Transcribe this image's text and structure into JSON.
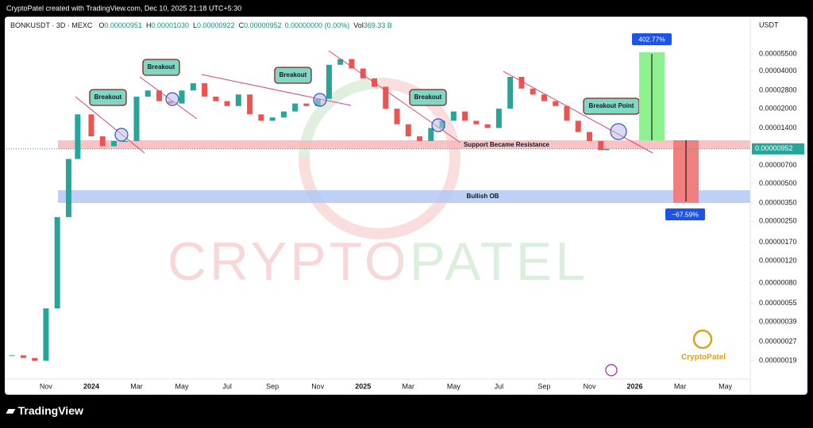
{
  "header": {
    "credit": "CryptoPatel created with TradingView.com, Dec 10, 2025 21:18 UTC+5:30",
    "symbol": "BONKUSDT · 3D · MEXC",
    "ohlc": [
      {
        "key": "O",
        "value": "0.00000951"
      },
      {
        "key": "H",
        "value": "0.00001030"
      },
      {
        "key": "L",
        "value": "0.00000922"
      },
      {
        "key": "C",
        "value": "0.00000952"
      }
    ],
    "change": "0.00000000 (0.00%)",
    "volume_key": "Vol",
    "volume": "369.33 B"
  },
  "chart_data": {
    "type": "candlestick",
    "y_unit": "USDT",
    "log_scale": true,
    "up_color": "#26a69a",
    "down_color": "#ef5350",
    "x": [
      -1.5,
      -1,
      -0.5,
      0,
      0.5,
      1,
      1.4,
      2,
      2.5,
      3,
      3.5,
      4,
      4.5,
      5,
      5.5,
      6,
      6.5,
      7,
      7.5,
      8,
      8.5,
      9,
      9.5,
      10,
      10.5,
      11,
      11.5,
      12,
      12.5,
      13,
      13.5,
      14,
      14.5,
      15,
      15.5,
      16,
      16.5,
      17,
      17.5,
      18,
      18.5,
      19,
      19.5,
      20,
      20.5,
      21,
      21.5,
      22,
      22.5,
      23,
      23.5,
      24,
      24.5,
      24.75
    ],
    "values": [
      2.1e-07,
      2e-07,
      1.9e-07,
      5e-07,
      2.7e-06,
      7.9e-06,
      1.8e-05,
      1.2e-05,
      1e-05,
      1.1e-05,
      1.1e-05,
      2.5e-05,
      2.8e-05,
      2.3e-05,
      2.2e-05,
      2.8e-05,
      3.2e-05,
      2.5e-05,
      2.3e-05,
      2.1e-05,
      2.6e-05,
      1.8e-05,
      1.6e-05,
      1.7e-05,
      1.9e-05,
      2.2e-05,
      2.1e-05,
      2.4e-05,
      4.5e-05,
      5e-05,
      4.2e-05,
      3.5e-05,
      3e-05,
      2e-05,
      1.5e-05,
      1.2e-05,
      1.1e-05,
      1.4e-05,
      1.6e-05,
      1.9e-05,
      1.6e-05,
      1.5e-05,
      1.4e-05,
      2e-05,
      3.6e-05,
      2.9e-05,
      2.6e-05,
      2.3e-05,
      2.1e-05,
      1.6e-05,
      1.3e-05,
      1.1e-05,
      9.3e-06,
      9.52e-06
    ],
    "xlim": [
      -1.75,
      31.1
    ],
    "ylim": [
      1.36e-07,
      9.6e-05
    ],
    "xticks": [
      {
        "value": 0,
        "label": "Nov"
      },
      {
        "value": 2,
        "label": "2024"
      },
      {
        "value": 4,
        "label": "Mar"
      },
      {
        "value": 6,
        "label": "May"
      },
      {
        "value": 8,
        "label": "Jul"
      },
      {
        "value": 10,
        "label": "Sep"
      },
      {
        "value": 12,
        "label": "Nov"
      },
      {
        "value": 14,
        "label": "2025"
      },
      {
        "value": 16,
        "label": "Mar"
      },
      {
        "value": 18,
        "label": "May"
      },
      {
        "value": 20,
        "label": "Jul"
      },
      {
        "value": 22,
        "label": "Sep"
      },
      {
        "value": 24,
        "label": "Nov"
      },
      {
        "value": 26,
        "label": "2026"
      },
      {
        "value": 28,
        "label": "Mar"
      },
      {
        "value": 30,
        "label": "May"
      }
    ],
    "yticks": [
      {
        "value": 5.5e-05,
        "label": "0.00005500"
      },
      {
        "value": 4e-05,
        "label": "0.00004000"
      },
      {
        "value": 2.8e-05,
        "label": "0.00002800"
      },
      {
        "value": 2e-05,
        "label": "0.00002000"
      },
      {
        "value": 1.4e-05,
        "label": "0.00001400"
      },
      {
        "value": 7e-06,
        "label": "0.00000700"
      },
      {
        "value": 5e-06,
        "label": "0.00000500"
      },
      {
        "value": 3.5e-06,
        "label": "0.00000350"
      },
      {
        "value": 2.5e-06,
        "label": "0.00000250"
      },
      {
        "value": 1.7e-06,
        "label": "0.00000170"
      },
      {
        "value": 1.2e-06,
        "label": "0.00000120"
      },
      {
        "value": 8e-07,
        "label": "0.00000080"
      },
      {
        "value": 5.5e-07,
        "label": "0.00000055"
      },
      {
        "value": 3.9e-07,
        "label": "0.00000039"
      },
      {
        "value": 2.7e-07,
        "label": "0.00000027"
      },
      {
        "value": 1.9e-07,
        "label": "0.00000019"
      }
    ],
    "last_price": {
      "value": 9.52e-06,
      "label": "0.00000952"
    }
  },
  "annotations": {
    "breakouts": [
      "Breakout",
      "Breakout",
      "Breakout",
      "Breakout",
      "Breakout Point"
    ],
    "resistance": "Support Became Resistance",
    "order_block": "Bullish OB",
    "upside": "402.77%",
    "downside": "−67.59%",
    "watermark": "CRYPTOPATEL",
    "logo": "CryptoPatel"
  },
  "footer": {
    "brand": "TradingView"
  }
}
